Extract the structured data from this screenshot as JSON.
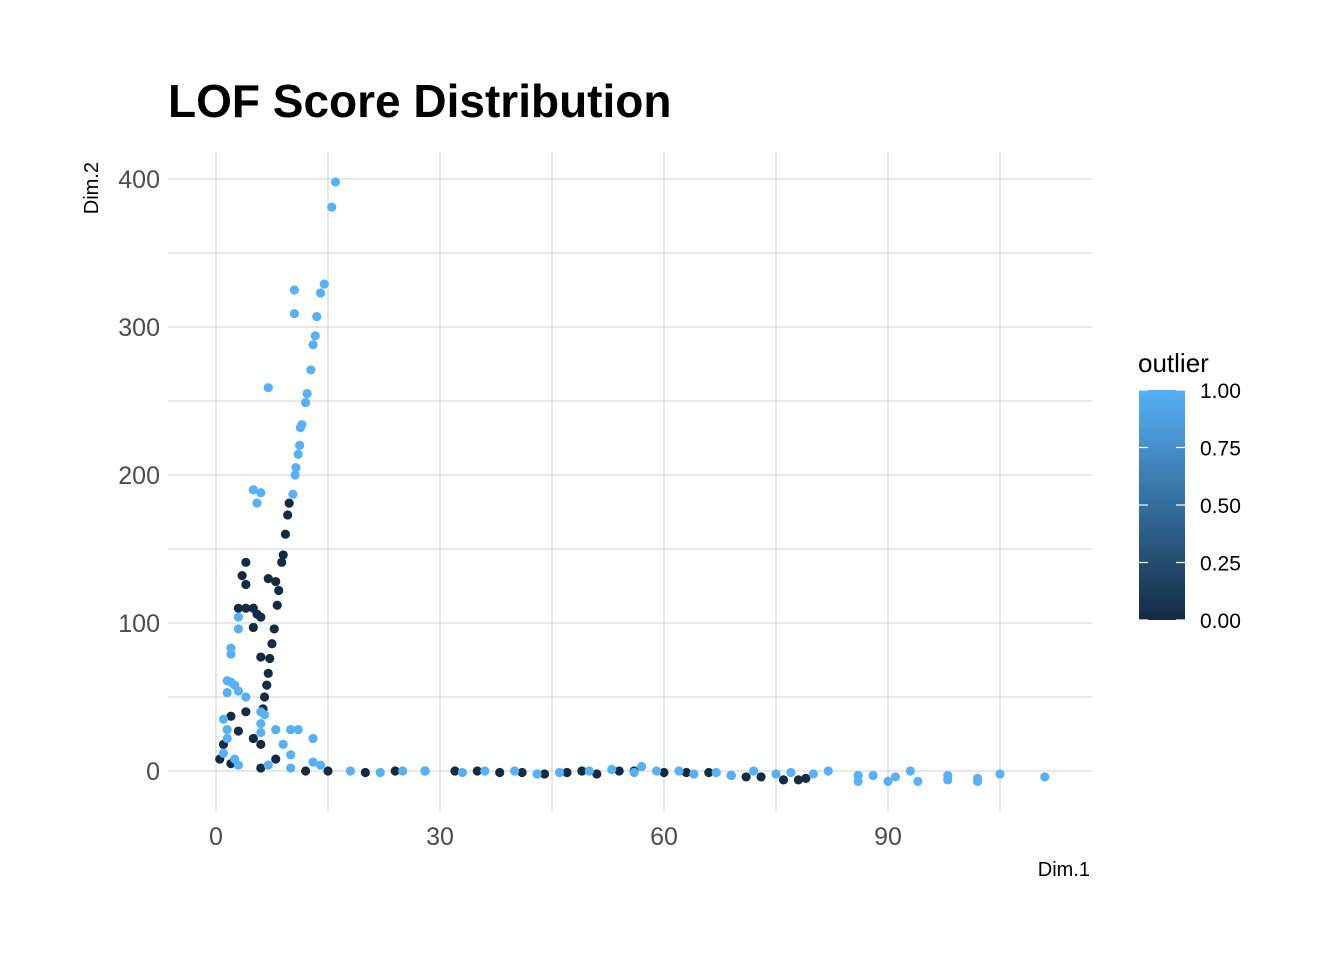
{
  "chart_data": {
    "type": "scatter",
    "title": "LOF Score Distribution",
    "xlabel": "Dim.1",
    "ylabel": "Dim.2",
    "xlim": [
      -5,
      117
    ],
    "ylim": [
      -27,
      410
    ],
    "x_ticks": [
      0,
      30,
      60,
      90
    ],
    "y_ticks": [
      0,
      100,
      200,
      300,
      400
    ],
    "grid": true,
    "legend": {
      "title": "outlier",
      "position": "right",
      "type": "colorbar",
      "low_color": "#132B43",
      "high_color": "#56B1F7",
      "range": [
        0,
        1
      ],
      "ticks": [
        "0.00",
        "0.25",
        "0.50",
        "0.75",
        "1.00"
      ]
    },
    "series": [
      {
        "outlier": 1,
        "color": "#56B1F7",
        "points": [
          [
            16,
            398
          ],
          [
            15.5,
            381
          ],
          [
            14.5,
            329
          ],
          [
            14,
            323
          ],
          [
            13.5,
            307
          ],
          [
            10.5,
            325
          ],
          [
            10.5,
            309
          ],
          [
            13.3,
            294
          ],
          [
            13,
            288
          ],
          [
            12.7,
            271
          ],
          [
            12.2,
            255
          ],
          [
            12,
            249
          ],
          [
            11.5,
            234
          ],
          [
            11.3,
            232
          ],
          [
            11.2,
            220
          ],
          [
            11,
            214
          ],
          [
            10.7,
            205
          ],
          [
            10.6,
            200
          ],
          [
            10.3,
            187
          ],
          [
            7,
            259
          ],
          [
            5,
            190
          ],
          [
            6,
            188
          ],
          [
            5.5,
            181
          ],
          [
            3,
            104
          ],
          [
            3,
            96
          ],
          [
            2,
            83
          ],
          [
            2,
            79
          ],
          [
            1.5,
            61
          ],
          [
            2,
            60
          ],
          [
            2.5,
            58
          ],
          [
            1.5,
            53
          ],
          [
            3,
            54
          ],
          [
            4,
            50
          ],
          [
            6,
            40
          ],
          [
            6.5,
            38
          ],
          [
            6,
            32
          ],
          [
            6,
            26
          ],
          [
            8,
            28
          ],
          [
            10,
            28
          ],
          [
            11,
            28
          ],
          [
            13,
            22
          ],
          [
            9,
            18
          ],
          [
            10,
            11
          ],
          [
            13,
            6
          ],
          [
            14,
            4
          ],
          [
            1,
            35
          ],
          [
            1.5,
            28
          ],
          [
            1.5,
            22
          ],
          [
            1,
            12
          ],
          [
            2.5,
            8
          ],
          [
            3,
            4
          ],
          [
            7,
            4
          ],
          [
            10,
            2
          ],
          [
            18,
            0
          ],
          [
            22,
            -1
          ],
          [
            25,
            0
          ],
          [
            28,
            0
          ],
          [
            33,
            -1
          ],
          [
            36,
            0
          ],
          [
            40,
            0
          ],
          [
            43,
            -2
          ],
          [
            46,
            -1
          ],
          [
            50,
            0
          ],
          [
            53,
            1
          ],
          [
            56,
            -1
          ],
          [
            57,
            3
          ],
          [
            59,
            0
          ],
          [
            62,
            0
          ],
          [
            64,
            -2
          ],
          [
            67,
            -1
          ],
          [
            69,
            -3
          ],
          [
            72,
            0
          ],
          [
            75,
            -2
          ],
          [
            77,
            -1
          ],
          [
            80,
            -2
          ],
          [
            82,
            0
          ],
          [
            86,
            -3
          ],
          [
            86,
            -7
          ],
          [
            88,
            -3
          ],
          [
            90,
            -7
          ],
          [
            91,
            -4
          ],
          [
            93,
            0
          ],
          [
            94,
            -7
          ],
          [
            98,
            -6
          ],
          [
            98,
            -3
          ],
          [
            102,
            -7
          ],
          [
            102,
            -5
          ],
          [
            105,
            -2
          ],
          [
            111,
            -4
          ]
        ]
      },
      {
        "outlier": 0,
        "color": "#132B43",
        "points": [
          [
            9.8,
            181
          ],
          [
            9.6,
            173
          ],
          [
            9.3,
            160
          ],
          [
            9.0,
            146
          ],
          [
            8.8,
            141
          ],
          [
            8.4,
            122
          ],
          [
            8.2,
            112
          ],
          [
            7.8,
            96
          ],
          [
            7.5,
            86
          ],
          [
            7.2,
            76
          ],
          [
            7.0,
            66
          ],
          [
            6.8,
            58
          ],
          [
            6.5,
            50
          ],
          [
            6.3,
            42
          ],
          [
            4,
            141
          ],
          [
            3.5,
            132
          ],
          [
            4,
            126
          ],
          [
            7,
            130
          ],
          [
            8,
            128
          ],
          [
            3,
            110
          ],
          [
            4,
            110
          ],
          [
            5,
            110
          ],
          [
            5.5,
            106
          ],
          [
            6,
            104
          ],
          [
            5,
            97
          ],
          [
            6,
            77
          ],
          [
            4,
            40
          ],
          [
            2,
            37
          ],
          [
            3,
            27
          ],
          [
            5,
            22
          ],
          [
            6,
            18
          ],
          [
            8,
            8
          ],
          [
            1,
            18
          ],
          [
            0.5,
            8
          ],
          [
            2,
            5
          ],
          [
            6,
            2
          ],
          [
            12,
            0
          ],
          [
            15,
            0
          ],
          [
            20,
            -1
          ],
          [
            24,
            0
          ],
          [
            28,
            0
          ],
          [
            32,
            0
          ],
          [
            35,
            0
          ],
          [
            38,
            -1
          ],
          [
            41,
            -1
          ],
          [
            44,
            -2
          ],
          [
            47,
            -1
          ],
          [
            49,
            0
          ],
          [
            51,
            -2
          ],
          [
            54,
            0
          ],
          [
            56,
            0
          ],
          [
            60,
            -1
          ],
          [
            63,
            -1
          ],
          [
            66,
            -1
          ],
          [
            69,
            -3
          ],
          [
            71,
            -4
          ],
          [
            73,
            -4
          ],
          [
            76,
            -6
          ],
          [
            78,
            -6
          ],
          [
            79,
            -5
          ]
        ]
      }
    ]
  }
}
